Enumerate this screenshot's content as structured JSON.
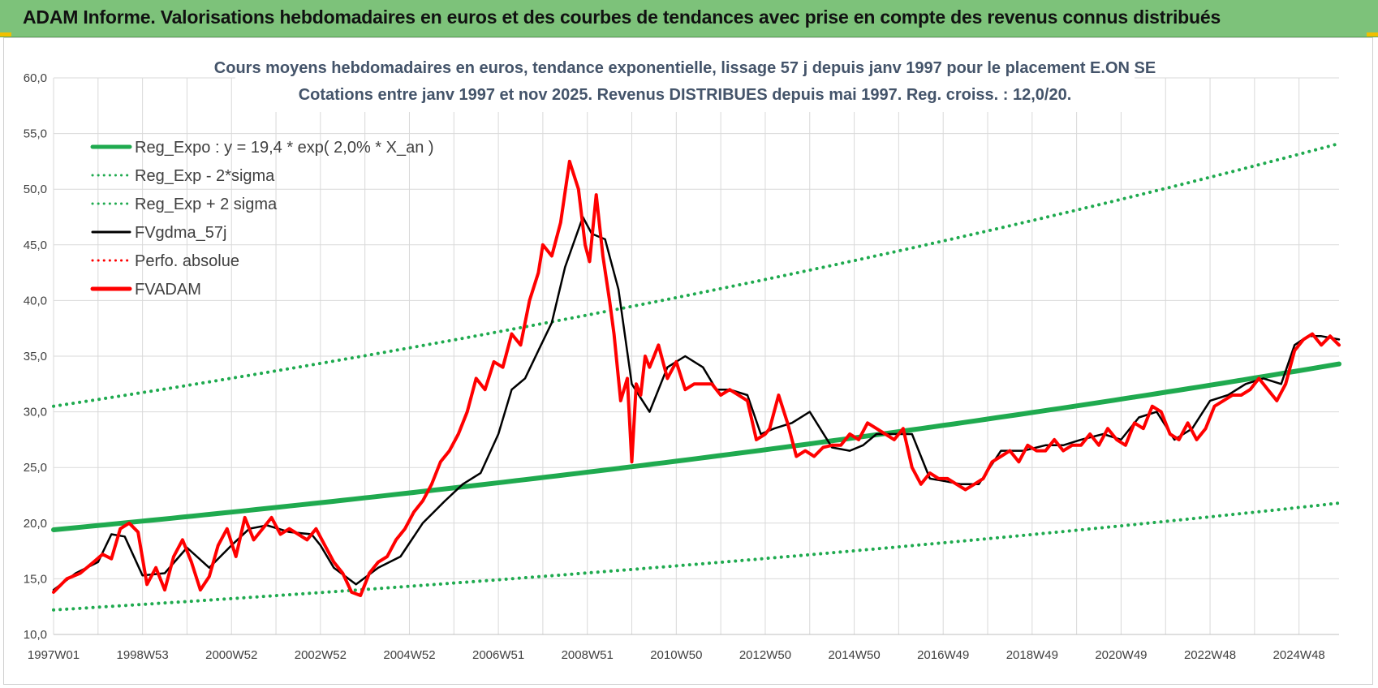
{
  "banner": {
    "title": "ADAM Informe. Valorisations hebdomadaires en euros et des courbes de tendances avec prise en compte des revenus connus distribués"
  },
  "colors": {
    "banner_bg": "#7dc27a",
    "reg_green": "#1faa4f",
    "black": "#000000",
    "red": "#ff0000",
    "title_text": "#44546a"
  },
  "chart_data": {
    "type": "line",
    "title_line1": "Cours moyens hebdomadaires en euros, tendance exponentielle, lissage 57 j depuis janv 1997 pour le placement E.ON SE",
    "title_line2": "Cotations entre janv 1997 et nov 2025. Revenus DISTRIBUES depuis mai 1997. Reg. croiss. : 12,0/20.",
    "xlim": [
      1997.0,
      2025.9
    ],
    "ylim": [
      10,
      60
    ],
    "grid": true,
    "legend_position": "top-left",
    "y_ticks": [
      "10,0",
      "15,0",
      "20,0",
      "25,0",
      "30,0",
      "35,0",
      "40,0",
      "45,0",
      "50,0",
      "55,0",
      "60,0"
    ],
    "x_ticks": [
      {
        "label": "1997W01",
        "x": 1997.0
      },
      {
        "label": "1998W53",
        "x": 1999.0
      },
      {
        "label": "2000W52",
        "x": 2001.0
      },
      {
        "label": "2002W52",
        "x": 2003.0
      },
      {
        "label": "2004W52",
        "x": 2005.0
      },
      {
        "label": "2006W51",
        "x": 2007.0
      },
      {
        "label": "2008W51",
        "x": 2009.0
      },
      {
        "label": "2010W50",
        "x": 2011.0
      },
      {
        "label": "2012W50",
        "x": 2013.0
      },
      {
        "label": "2014W50",
        "x": 2015.0
      },
      {
        "label": "2016W49",
        "x": 2017.0
      },
      {
        "label": "2018W49",
        "x": 2019.0
      },
      {
        "label": "2020W49",
        "x": 2021.0
      },
      {
        "label": "2022W48",
        "x": 2023.0
      },
      {
        "label": "2024W48",
        "x": 2025.0
      }
    ],
    "series": [
      {
        "name": "Reg_Expo : y = 19,4 * exp( 2,0% *  X_an )",
        "style": "solid-thick",
        "color": "#1faa4f",
        "x": [
          1997.0,
          2025.9
        ],
        "y": [
          19.4,
          34.3
        ]
      },
      {
        "name": "Reg_Exp - 2*sigma",
        "style": "dotted",
        "color": "#1faa4f",
        "x": [
          1997.0,
          2025.9
        ],
        "y": [
          12.2,
          21.8
        ]
      },
      {
        "name": "Reg_Exp + 2 sigma",
        "style": "dotted",
        "color": "#1faa4f",
        "x": [
          1997.0,
          2025.9
        ],
        "y": [
          30.5,
          54.1
        ]
      },
      {
        "name": "FVgdma_57j",
        "style": "solid",
        "color": "#000000",
        "x": [
          1997.0,
          1997.5,
          1998.0,
          1998.3,
          1998.6,
          1999.0,
          1999.5,
          2000.0,
          2000.5,
          2001.0,
          2001.4,
          2001.8,
          2002.3,
          2002.8,
          2003.0,
          2003.3,
          2003.8,
          2004.3,
          2004.8,
          2005.3,
          2005.8,
          2006.2,
          2006.6,
          2007.0,
          2007.3,
          2007.6,
          2007.9,
          2008.2,
          2008.5,
          2008.9,
          2009.1,
          2009.4,
          2009.7,
          2010.0,
          2010.4,
          2010.8,
          2011.2,
          2011.6,
          2011.9,
          2012.2,
          2012.6,
          2012.9,
          2013.2,
          2013.6,
          2014.0,
          2014.5,
          2014.9,
          2015.2,
          2015.5,
          2015.9,
          2016.3,
          2016.7,
          2017.0,
          2017.4,
          2017.8,
          2018.3,
          2018.8,
          2019.3,
          2019.7,
          2020.1,
          2020.6,
          2021.0,
          2021.4,
          2021.8,
          2022.2,
          2022.6,
          2023.0,
          2023.4,
          2023.8,
          2024.2,
          2024.6,
          2024.9,
          2025.2,
          2025.5,
          2025.9
        ],
        "y": [
          14.0,
          15.5,
          16.5,
          19.0,
          18.8,
          15.3,
          15.5,
          17.8,
          16.0,
          18.0,
          19.5,
          19.8,
          19.2,
          19.0,
          18.0,
          16.0,
          14.5,
          16.0,
          17.0,
          20.0,
          22.0,
          23.5,
          24.5,
          28.0,
          32.0,
          33.0,
          35.5,
          38.0,
          43.0,
          47.5,
          46.0,
          45.5,
          41.0,
          32.5,
          30.0,
          34.0,
          35.0,
          34.0,
          32.0,
          32.0,
          31.5,
          28.0,
          28.5,
          29.0,
          30.0,
          26.8,
          26.5,
          27.0,
          28.0,
          28.0,
          28.0,
          24.0,
          23.8,
          23.5,
          23.5,
          26.5,
          26.5,
          27.0,
          27.0,
          27.5,
          28.0,
          27.5,
          29.5,
          30.0,
          27.5,
          28.5,
          31.0,
          31.5,
          32.5,
          33.0,
          32.5,
          36.0,
          36.8,
          36.8,
          36.5
        ]
      },
      {
        "name": "Perfo. absolue",
        "style": "dotted",
        "color": "#ff0000",
        "x": [],
        "y": []
      },
      {
        "name": "FVADAM",
        "style": "solid-thick",
        "color": "#ff0000",
        "x": [
          1997.0,
          1997.3,
          1997.6,
          1997.9,
          1998.1,
          1998.3,
          1998.5,
          1998.7,
          1998.9,
          1999.1,
          1999.3,
          1999.5,
          1999.7,
          1999.9,
          2000.1,
          2000.3,
          2000.5,
          2000.7,
          2000.9,
          2001.1,
          2001.3,
          2001.5,
          2001.7,
          2001.9,
          2002.1,
          2002.3,
          2002.5,
          2002.7,
          2002.9,
          2003.1,
          2003.3,
          2003.5,
          2003.7,
          2003.9,
          2004.1,
          2004.3,
          2004.5,
          2004.7,
          2004.9,
          2005.1,
          2005.3,
          2005.5,
          2005.7,
          2005.9,
          2006.1,
          2006.3,
          2006.5,
          2006.7,
          2006.9,
          2007.1,
          2007.3,
          2007.5,
          2007.7,
          2007.9,
          2008.0,
          2008.2,
          2008.4,
          2008.6,
          2008.8,
          2008.95,
          2009.05,
          2009.2,
          2009.35,
          2009.5,
          2009.6,
          2009.75,
          2009.9,
          2010.0,
          2010.1,
          2010.2,
          2010.3,
          2010.4,
          2010.6,
          2010.8,
          2011.0,
          2011.2,
          2011.4,
          2011.6,
          2011.8,
          2012.0,
          2012.2,
          2012.4,
          2012.6,
          2012.8,
          2013.0,
          2013.1,
          2013.3,
          2013.5,
          2013.7,
          2013.9,
          2014.1,
          2014.3,
          2014.5,
          2014.7,
          2014.9,
          2015.1,
          2015.3,
          2015.5,
          2015.7,
          2015.9,
          2016.1,
          2016.3,
          2016.5,
          2016.7,
          2016.9,
          2017.1,
          2017.3,
          2017.5,
          2017.7,
          2017.9,
          2018.1,
          2018.3,
          2018.5,
          2018.7,
          2018.9,
          2019.1,
          2019.3,
          2019.5,
          2019.7,
          2019.9,
          2020.1,
          2020.3,
          2020.5,
          2020.7,
          2020.9,
          2021.1,
          2021.3,
          2021.5,
          2021.7,
          2021.9,
          2022.1,
          2022.3,
          2022.5,
          2022.7,
          2022.9,
          2023.1,
          2023.3,
          2023.5,
          2023.7,
          2023.9,
          2024.1,
          2024.3,
          2024.5,
          2024.7,
          2024.9,
          2025.1,
          2025.3,
          2025.5,
          2025.7,
          2025.9
        ],
        "y": [
          13.8,
          15.0,
          15.5,
          16.5,
          17.2,
          16.8,
          19.5,
          20.0,
          19.2,
          14.5,
          16.0,
          14.0,
          17.0,
          18.5,
          16.5,
          14.0,
          15.2,
          18.0,
          19.5,
          17.0,
          20.5,
          18.5,
          19.5,
          20.5,
          19.0,
          19.5,
          19.0,
          18.5,
          19.5,
          18.0,
          16.5,
          15.5,
          13.8,
          13.5,
          15.5,
          16.5,
          17.0,
          18.5,
          19.5,
          21.0,
          22.0,
          23.5,
          25.5,
          26.5,
          28.0,
          30.0,
          33.0,
          32.0,
          34.5,
          34.0,
          37.0,
          36.0,
          40.0,
          42.5,
          45.0,
          44.0,
          47.0,
          52.5,
          50.0,
          45.0,
          43.5,
          49.5,
          44.0,
          40.0,
          37.0,
          31.0,
          33.0,
          25.5,
          32.5,
          31.5,
          35.0,
          34.0,
          36.0,
          33.0,
          34.5,
          32.0,
          32.5,
          32.5,
          32.5,
          31.5,
          32.0,
          31.5,
          31.0,
          27.5,
          28.0,
          28.5,
          31.5,
          29.0,
          26.0,
          26.5,
          26.0,
          26.8,
          27.0,
          27.0,
          28.0,
          27.5,
          29.0,
          28.5,
          28.0,
          27.5,
          28.5,
          25.0,
          23.5,
          24.5,
          24.0,
          24.0,
          23.5,
          23.0,
          23.5,
          24.0,
          25.5,
          26.0,
          26.5,
          25.5,
          27.0,
          26.5,
          26.5,
          27.5,
          26.5,
          27.0,
          27.0,
          28.0,
          27.0,
          28.5,
          27.5,
          27.0,
          29.0,
          28.5,
          30.5,
          30.0,
          28.0,
          27.5,
          29.0,
          27.5,
          28.5,
          30.5,
          31.0,
          31.5,
          31.5,
          32.0,
          33.0,
          32.0,
          31.0,
          32.5,
          35.5,
          36.5,
          37.0,
          36.0,
          36.8,
          36.0
        ]
      }
    ]
  }
}
